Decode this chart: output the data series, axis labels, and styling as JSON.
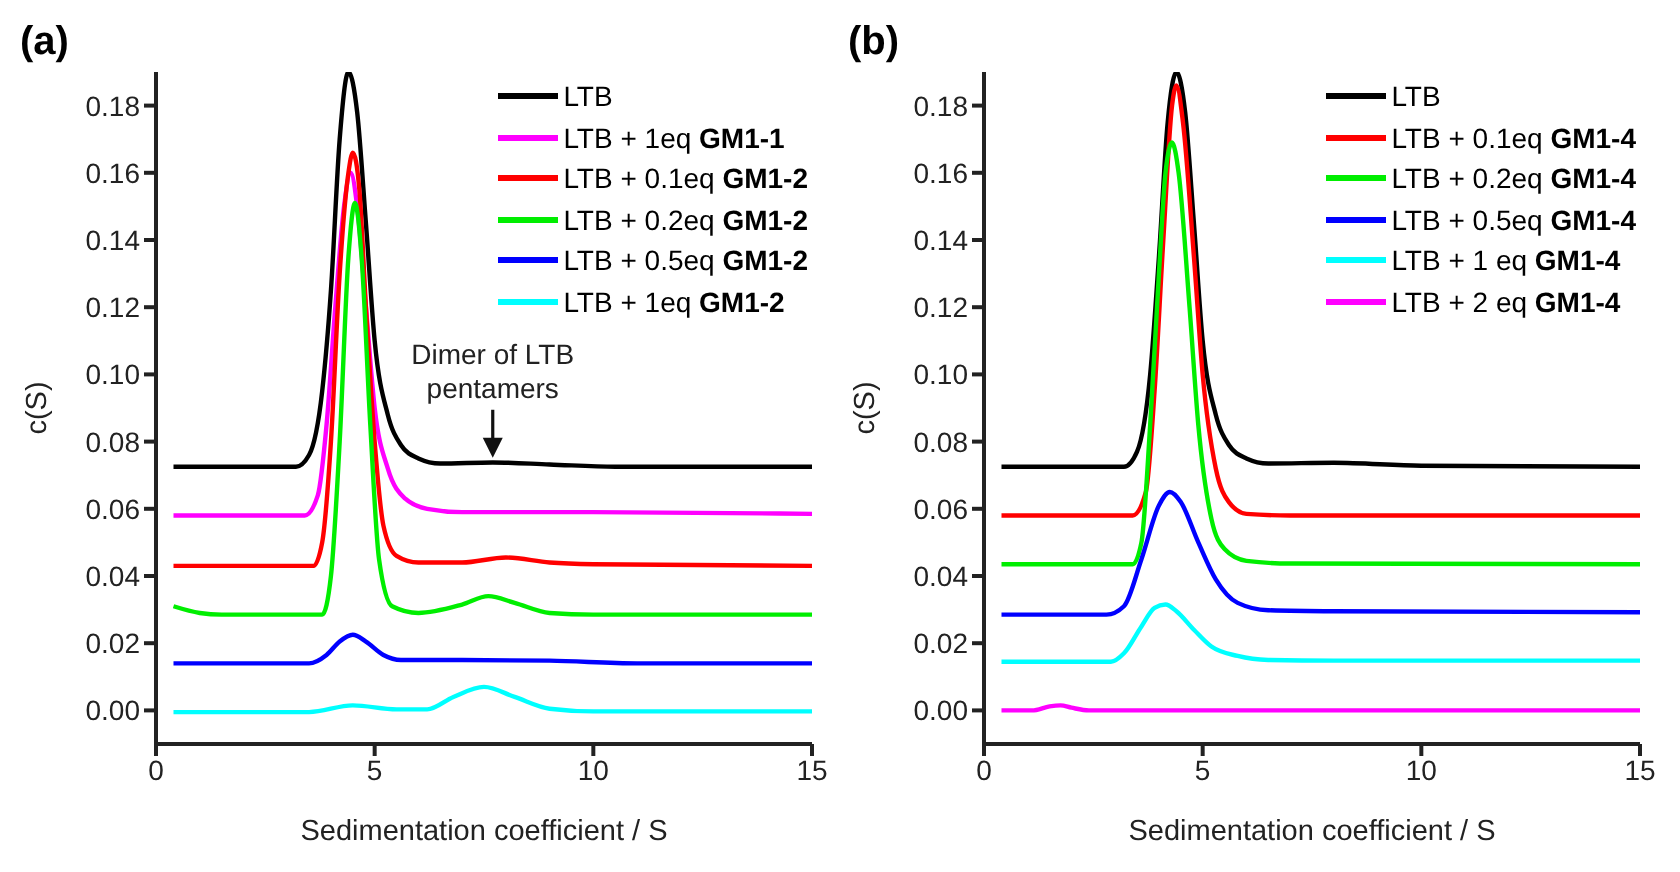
{
  "chart_data": [
    {
      "type": "line",
      "title": "(a)",
      "xlabel": "Sedimentation coefficient / S",
      "ylabel": "c(S)",
      "xlim": [
        0,
        15
      ],
      "xticks": [
        0,
        5,
        10,
        15
      ],
      "ylim": [
        -0.01,
        0.19
      ],
      "yticks": [
        {
          "value": 0,
          "label": "0.00"
        },
        {
          "value": 0.02,
          "label": "0.02"
        },
        {
          "value": 0.04,
          "label": "0.04"
        },
        {
          "value": 0.06,
          "label": "0.06"
        },
        {
          "value": 0.08,
          "label": "0.08"
        },
        {
          "value": 0.1,
          "label": "0.10"
        },
        {
          "value": 0.12,
          "label": "0.12"
        },
        {
          "value": 0.14,
          "label": "0.14"
        },
        {
          "value": 0.16,
          "label": "0.16"
        },
        {
          "value": 0.18,
          "label": "0.18"
        }
      ],
      "grid": false,
      "legend": "top right",
      "marker": "none",
      "line_style": "solid",
      "annotations": [
        {
          "text": "Dimer of LTB pentamers",
          "x": 7.7,
          "y": 0.074
        }
      ],
      "series": [
        {
          "name": "LTB",
          "color": "#000000",
          "x": [
            0.4,
            3.2,
            3.5,
            3.8,
            4.0,
            4.2,
            4.4,
            4.6,
            4.8,
            5.0,
            5.3,
            5.6,
            6.0,
            6.5,
            7.7,
            9,
            10.5,
            15
          ],
          "values": [
            0.0725,
            0.0725,
            0.076,
            0.095,
            0.125,
            0.17,
            0.19,
            0.178,
            0.145,
            0.11,
            0.088,
            0.079,
            0.075,
            0.0735,
            0.0738,
            0.0732,
            0.0725,
            0.0725
          ]
        },
        {
          "name": "LTB + 1eq GM1-1",
          "color": "#ff00ff",
          "x": [
            0.4,
            3.4,
            3.7,
            3.9,
            4.1,
            4.3,
            4.45,
            4.6,
            4.8,
            5.0,
            5.3,
            5.7,
            6.2,
            7,
            10,
            15
          ],
          "values": [
            0.058,
            0.058,
            0.064,
            0.085,
            0.12,
            0.15,
            0.16,
            0.15,
            0.12,
            0.09,
            0.072,
            0.063,
            0.06,
            0.059,
            0.059,
            0.0585
          ]
        },
        {
          "name": "LTB + 0.1eq GM1-2",
          "color": "#ff0000",
          "x": [
            0.4,
            3.6,
            3.8,
            4.0,
            4.2,
            4.4,
            4.5,
            4.65,
            4.8,
            5.0,
            5.2,
            5.5,
            6,
            7,
            8,
            9,
            10,
            15
          ],
          "values": [
            0.043,
            0.043,
            0.05,
            0.08,
            0.13,
            0.16,
            0.166,
            0.155,
            0.12,
            0.08,
            0.055,
            0.046,
            0.044,
            0.044,
            0.0455,
            0.044,
            0.0435,
            0.043
          ]
        },
        {
          "name": "LTB + 0.2eq GM1-2",
          "color": "#00ee00",
          "x": [
            0.4,
            1,
            1.5,
            3.8,
            4.0,
            4.2,
            4.4,
            4.55,
            4.7,
            4.9,
            5.1,
            5.4,
            6,
            7,
            7.6,
            8.2,
            9,
            10,
            15
          ],
          "values": [
            0.031,
            0.029,
            0.0285,
            0.0285,
            0.04,
            0.08,
            0.135,
            0.151,
            0.135,
            0.085,
            0.045,
            0.031,
            0.029,
            0.0315,
            0.034,
            0.032,
            0.029,
            0.0285,
            0.0285
          ]
        },
        {
          "name": "LTB + 0.5eq GM1-2",
          "color": "#0000ff",
          "x": [
            0.4,
            3.5,
            3.9,
            4.2,
            4.5,
            4.8,
            5.2,
            5.6,
            7,
            9,
            11,
            15
          ],
          "values": [
            0.014,
            0.014,
            0.0165,
            0.0205,
            0.0225,
            0.0205,
            0.0165,
            0.015,
            0.015,
            0.0148,
            0.014,
            0.014
          ]
        },
        {
          "name": "LTB + 1eq GM1-2",
          "color": "#00ffff",
          "x": [
            0.4,
            3.5,
            4.5,
            5.5,
            6.2,
            6.8,
            7.5,
            8.2,
            9,
            10,
            15
          ],
          "values": [
            -0.0005,
            -0.0005,
            0.0015,
            0.0003,
            0.0003,
            0.004,
            0.007,
            0.004,
            0.0005,
            -0.0003,
            -0.0003
          ]
        }
      ]
    },
    {
      "type": "line",
      "title": "(b)",
      "xlabel": "Sedimentation coefficient / S",
      "ylabel": "c(S)",
      "xlim": [
        0,
        15
      ],
      "xticks": [
        0,
        5,
        10,
        15
      ],
      "ylim": [
        -0.01,
        0.19
      ],
      "yticks": [
        {
          "value": 0,
          "label": "0.00"
        },
        {
          "value": 0.02,
          "label": "0.02"
        },
        {
          "value": 0.04,
          "label": "0.04"
        },
        {
          "value": 0.06,
          "label": "0.06"
        },
        {
          "value": 0.08,
          "label": "0.08"
        },
        {
          "value": 0.1,
          "label": "0.10"
        },
        {
          "value": 0.12,
          "label": "0.12"
        },
        {
          "value": 0.14,
          "label": "0.14"
        },
        {
          "value": 0.16,
          "label": "0.16"
        },
        {
          "value": 0.18,
          "label": "0.18"
        }
      ],
      "grid": false,
      "legend": "top right",
      "marker": "none",
      "line_style": "solid",
      "series": [
        {
          "name": "LTB",
          "color": "#000000",
          "x": [
            0.4,
            3.2,
            3.5,
            3.8,
            4.0,
            4.2,
            4.4,
            4.6,
            4.8,
            5.0,
            5.3,
            5.6,
            6.0,
            6.5,
            8,
            10,
            15
          ],
          "values": [
            0.0725,
            0.0725,
            0.077,
            0.1,
            0.135,
            0.175,
            0.19,
            0.178,
            0.145,
            0.11,
            0.088,
            0.079,
            0.075,
            0.0735,
            0.0737,
            0.0728,
            0.0725
          ]
        },
        {
          "name": "LTB + 0.1eq GM1-4",
          "color": "#ff0000",
          "x": [
            0.4,
            3.4,
            3.7,
            3.9,
            4.1,
            4.3,
            4.4,
            4.55,
            4.8,
            5.0,
            5.3,
            5.6,
            6,
            7,
            15
          ],
          "values": [
            0.058,
            0.058,
            0.065,
            0.095,
            0.14,
            0.18,
            0.186,
            0.175,
            0.135,
            0.1,
            0.072,
            0.062,
            0.0585,
            0.058,
            0.058
          ]
        },
        {
          "name": "LTB + 0.2eq GM1-4",
          "color": "#00ee00",
          "x": [
            0.4,
            3.4,
            3.6,
            3.8,
            4.0,
            4.15,
            4.3,
            4.45,
            4.7,
            4.9,
            5.2,
            5.5,
            6,
            7,
            15
          ],
          "values": [
            0.0435,
            0.0435,
            0.05,
            0.085,
            0.13,
            0.16,
            0.169,
            0.16,
            0.12,
            0.085,
            0.057,
            0.048,
            0.0445,
            0.0437,
            0.0435
          ]
        },
        {
          "name": "LTB + 0.5eq GM1-4",
          "color": "#0000ff",
          "x": [
            0.4,
            2.8,
            3.2,
            3.6,
            4.0,
            4.25,
            4.5,
            4.9,
            5.3,
            5.8,
            6.5,
            8,
            15
          ],
          "values": [
            0.0285,
            0.0285,
            0.031,
            0.045,
            0.061,
            0.065,
            0.062,
            0.05,
            0.039,
            0.032,
            0.0298,
            0.0295,
            0.0292
          ]
        },
        {
          "name": "LTB + 1 eq GM1-4",
          "color": "#00ffff",
          "x": [
            0.4,
            2.9,
            3.2,
            3.6,
            3.9,
            4.15,
            4.4,
            4.8,
            5.2,
            5.8,
            6.5,
            8,
            15
          ],
          "values": [
            0.0145,
            0.0145,
            0.017,
            0.025,
            0.0305,
            0.0315,
            0.0295,
            0.024,
            0.019,
            0.0162,
            0.015,
            0.0148,
            0.0148
          ]
        },
        {
          "name": "LTB + 2 eq GM1-4",
          "color": "#ff00ff",
          "x": [
            0.4,
            1.1,
            1.5,
            1.75,
            2.0,
            2.4,
            15
          ],
          "values": [
            0,
            0,
            0.0012,
            0.0015,
            0.0008,
            0,
            0
          ]
        }
      ]
    }
  ]
}
